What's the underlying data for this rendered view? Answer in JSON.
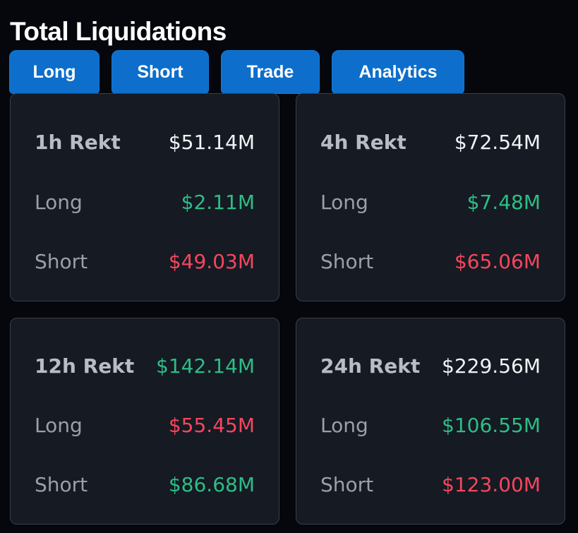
{
  "page": {
    "title": "Total Liquidations"
  },
  "tabs": [
    {
      "label": "Long"
    },
    {
      "label": "Short"
    },
    {
      "label": "Trade"
    },
    {
      "label": "Analytics"
    }
  ],
  "colors": {
    "accent": "#0d6ecb",
    "positive": "#2ebd85",
    "negative": "#f6465d",
    "card_bg": "#151a23",
    "page_bg": "#05070c"
  },
  "cards": [
    {
      "rows": [
        {
          "label": "1h Rekt",
          "value": "$51.14M",
          "tone": "white"
        },
        {
          "label": "Long",
          "value": "$2.11M",
          "tone": "green"
        },
        {
          "label": "Short",
          "value": "$49.03M",
          "tone": "red"
        }
      ]
    },
    {
      "rows": [
        {
          "label": "4h Rekt",
          "value": "$72.54M",
          "tone": "white"
        },
        {
          "label": "Long",
          "value": "$7.48M",
          "tone": "green"
        },
        {
          "label": "Short",
          "value": "$65.06M",
          "tone": "red"
        }
      ]
    },
    {
      "rows": [
        {
          "label": "12h Rekt",
          "value": "$142.14M",
          "tone": "green"
        },
        {
          "label": "Long",
          "value": "$55.45M",
          "tone": "red"
        },
        {
          "label": "Short",
          "value": "$86.68M",
          "tone": "green"
        }
      ]
    },
    {
      "rows": [
        {
          "label": "24h Rekt",
          "value": "$229.56M",
          "tone": "white"
        },
        {
          "label": "Long",
          "value": "$106.55M",
          "tone": "green"
        },
        {
          "label": "Short",
          "value": "$123.00M",
          "tone": "red"
        }
      ]
    }
  ]
}
